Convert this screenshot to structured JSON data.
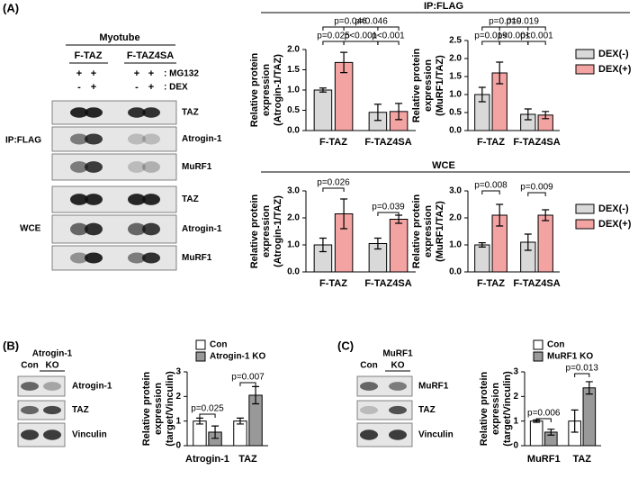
{
  "figure": {
    "panel_labels": [
      "(A)",
      "(B)",
      "(C)"
    ],
    "section_titles": [
      "IP:FLAG",
      "WCE"
    ]
  },
  "blot_a": {
    "title": "Myotube",
    "groups": [
      "F-TAZ",
      "F-TAZ4SA"
    ],
    "treatments": [
      {
        "label": ": MG132",
        "signs": [
          "+",
          "+",
          "+",
          "+"
        ]
      },
      {
        "label": ": DEX",
        "signs": [
          "-",
          "+",
          "-",
          "+"
        ]
      }
    ],
    "sections": [
      "IP:FLAG",
      "WCE"
    ],
    "rows": [
      "TAZ",
      "Atrogin-1",
      "MuRF1",
      "TAZ",
      "Atrogin-1",
      "MuRF1"
    ]
  },
  "blot_b": {
    "lanes": [
      [
        "Con"
      ],
      [
        "Atrogin-1",
        "KO"
      ]
    ],
    "rows": [
      "Atrogin-1",
      "TAZ",
      "Vinculin"
    ]
  },
  "blot_c": {
    "lanes": [
      [
        "Con"
      ],
      [
        "MuRF1",
        "KO"
      ]
    ],
    "rows": [
      "MuRF1",
      "TAZ",
      "Vinculin"
    ]
  },
  "chart_data": [
    {
      "type": "bar",
      "ylabel": [
        "Relative protein",
        "expression",
        "(Atrogin-1/TAZ)"
      ],
      "categories": [
        "F-TAZ",
        "F-TAZ4SA"
      ],
      "series": [
        {
          "name": "DEX(-)",
          "color": "#d9d9d9",
          "values": [
            1.0,
            0.45
          ],
          "errors": [
            0.05,
            0.2
          ]
        },
        {
          "name": "DEX(+)",
          "color": "#f4a3a3",
          "values": [
            1.68,
            0.47
          ],
          "errors": [
            0.25,
            0.2
          ]
        }
      ],
      "ylim": [
        0,
        2
      ],
      "yticks": [
        {
          "value": 0,
          "label": "0.0"
        },
        0.5,
        {
          "value": 1,
          "label": "1.0"
        },
        1.5,
        {
          "value": 2,
          "label": "2.0"
        }
      ],
      "annotations": [
        "p=0.046",
        "p=0.046",
        "p=0.025",
        "p<0.001",
        "p<0.001"
      ]
    },
    {
      "type": "bar",
      "ylabel": [
        "Relative protein",
        "expression",
        "(MuRF1/TAZ)"
      ],
      "categories": [
        "F-TAZ",
        "F-TAZ4SA"
      ],
      "series": [
        {
          "name": "DEX(-)",
          "color": "#d9d9d9",
          "values": [
            1.0,
            0.45
          ],
          "errors": [
            0.2,
            0.15
          ]
        },
        {
          "name": "DEX(+)",
          "color": "#f4a3a3",
          "values": [
            1.6,
            0.43
          ],
          "errors": [
            0.3,
            0.1
          ]
        }
      ],
      "ylim": [
        0,
        2.5
      ],
      "yticks": [
        {
          "value": 0,
          "label": "0.0"
        },
        0.5,
        {
          "value": 1,
          "label": "1.0"
        },
        1.5,
        {
          "value": 2,
          "label": "2.0"
        },
        2.5
      ],
      "annotations": [
        "p=0.019",
        "p=0.019",
        "p=0.019",
        "p<0.001",
        "p<0.001"
      ],
      "legend": "right"
    },
    {
      "type": "bar",
      "ylabel": [
        "Relative protein",
        "expression",
        "(Atrogin-1/TAZ)"
      ],
      "categories": [
        "F-TAZ",
        "F-TAZ4SA"
      ],
      "series": [
        {
          "name": "DEX(-)",
          "color": "#d9d9d9",
          "values": [
            1.0,
            1.05
          ],
          "errors": [
            0.25,
            0.2
          ]
        },
        {
          "name": "DEX(+)",
          "color": "#f4a3a3",
          "values": [
            2.15,
            1.95
          ],
          "errors": [
            0.55,
            0.15
          ]
        }
      ],
      "ylim": [
        0,
        3
      ],
      "yticks": [
        {
          "value": 0,
          "label": "0.0"
        },
        {
          "value": 1,
          "label": "1.0"
        },
        {
          "value": 2,
          "label": "2.0"
        },
        {
          "value": 3,
          "label": "3.0"
        }
      ],
      "annotations": [
        "p=0.026",
        "p=0.039"
      ]
    },
    {
      "type": "bar",
      "ylabel": [
        "Relative protein",
        "expression",
        "(MuRF1/TAZ)"
      ],
      "categories": [
        "F-TAZ",
        "F-TAZ4SA"
      ],
      "series": [
        {
          "name": "DEX(-)",
          "color": "#d9d9d9",
          "values": [
            1.0,
            1.1
          ],
          "errors": [
            0.08,
            0.3
          ]
        },
        {
          "name": "DEX(+)",
          "color": "#f4a3a3",
          "values": [
            2.1,
            2.1
          ],
          "errors": [
            0.4,
            0.2
          ]
        }
      ],
      "ylim": [
        0,
        3
      ],
      "yticks": [
        {
          "value": 0,
          "label": "0.0"
        },
        {
          "value": 1,
          "label": "1.0"
        },
        {
          "value": 2,
          "label": "2.0"
        },
        {
          "value": 3,
          "label": "3.0"
        }
      ],
      "annotations": [
        "p=0.008",
        "p=0.009"
      ],
      "legend": "right"
    },
    {
      "type": "bar",
      "ylabel": [
        "Relative protein",
        "expression",
        "(target/Vinculin)"
      ],
      "categories": [
        "Atrogin-1",
        "TAZ"
      ],
      "series": [
        {
          "name": "Con",
          "color": "#ffffff",
          "values": [
            1.0,
            1.0
          ],
          "errors": [
            0.12,
            0.12
          ]
        },
        {
          "name": "Atrogin-1 KO",
          "color": "#999999",
          "values": [
            0.55,
            2.05
          ],
          "errors": [
            0.25,
            0.35
          ]
        }
      ],
      "ylim": [
        0,
        3
      ],
      "yticks": [
        0,
        1,
        2,
        3
      ],
      "annotations": [
        "p=0.025",
        "p=0.007"
      ],
      "legend": "top"
    },
    {
      "type": "bar",
      "ylabel": [
        "Relative protein",
        "expression",
        "(target/Vinculin)"
      ],
      "categories": [
        "MuRF1",
        "TAZ"
      ],
      "series": [
        {
          "name": "Con",
          "color": "#ffffff",
          "values": [
            1.0,
            1.0
          ],
          "errors": [
            0.05,
            0.45
          ]
        },
        {
          "name": "MuRF1 KO",
          "color": "#999999",
          "values": [
            0.55,
            2.35
          ],
          "errors": [
            0.12,
            0.25
          ]
        }
      ],
      "ylim": [
        0,
        3
      ],
      "yticks": [
        0,
        1,
        2,
        3
      ],
      "annotations": [
        "p=0.006",
        "p=0.013"
      ],
      "legend": "top"
    }
  ]
}
